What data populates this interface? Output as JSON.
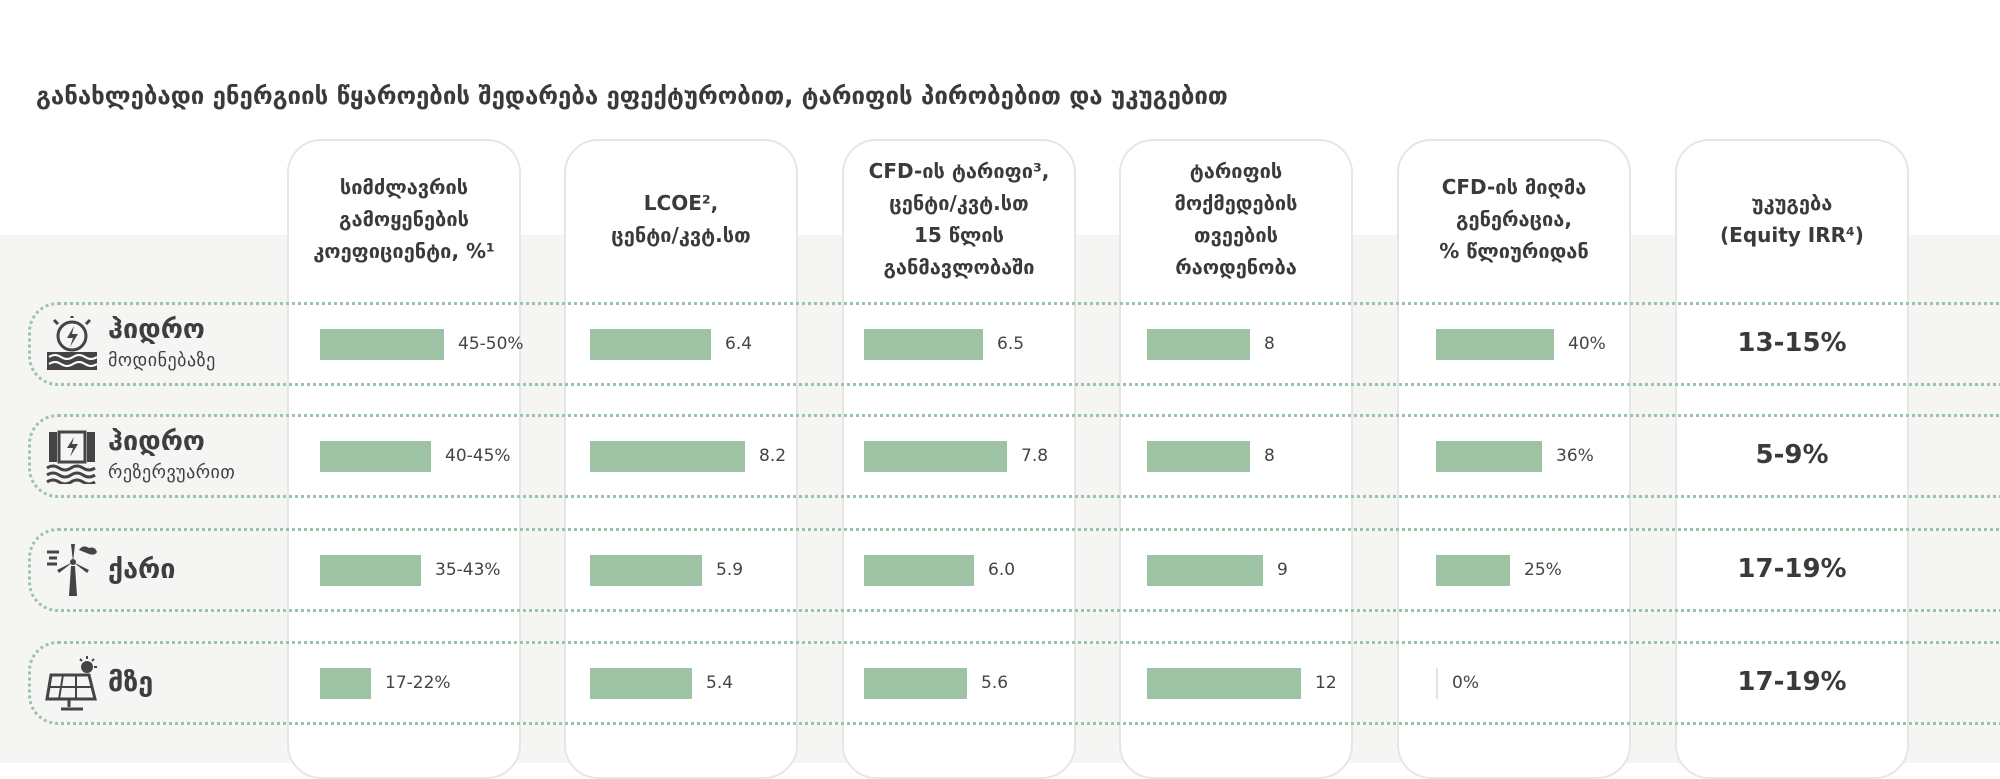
{
  "title": "განახლებადი ენერგიის წყაროების შედარება ეფექტურობით, ტარიფის პირობებით და უკუგებით",
  "colors": {
    "bar": "#9ec2a4",
    "row_border": "#9cc4a6",
    "band": "#f5f5f3"
  },
  "columns": [
    {
      "header": "სიმძლავრის\nგამოყენების\nკოეფიციენტი, %¹"
    },
    {
      "header": "LCOE²,\nცენტი/კვტ.სთ"
    },
    {
      "header": "CFD-ის ტარიფი³,\nცენტი/კვტ.სთ\n15 წლის\nგანმავლობაში"
    },
    {
      "header": "ტარიფის\nმოქმედების\nთვეების\nრაოდენობა"
    },
    {
      "header": "CFD-ის მიღმა\nგენერაცია,\n% წლიურიდან"
    },
    {
      "header": "უკუგება\n(Equity IRR⁴)"
    }
  ],
  "rows": [
    {
      "name": "ჰიდრო",
      "sub": "მოდინებაზე",
      "icon": "hydro-plant-icon"
    },
    {
      "name": "ჰიდრო",
      "sub": "რეზერვუარით",
      "icon": "dam-icon"
    },
    {
      "name": "ქარი",
      "sub": "",
      "icon": "wind-turbine-icon"
    },
    {
      "name": "მზე",
      "sub": "",
      "icon": "solar-panel-icon"
    }
  ],
  "chart_data": {
    "type": "bar",
    "categories": [
      "ჰიდრო მოდინებაზე",
      "ჰიდრო რეზერვუარით",
      "ქარი",
      "მზე"
    ],
    "series": [
      {
        "name": "სიმძლავრის გამოყენების კოეფიციენტი, %",
        "values": [
          47.5,
          42.5,
          39,
          19.5
        ],
        "labels": [
          "45-50%",
          "40-45%",
          "35-43%",
          "17-22%"
        ],
        "scale_max": 50
      },
      {
        "name": "LCOE, ცენტი/კვტ.სთ",
        "values": [
          6.4,
          8.2,
          5.9,
          5.4
        ],
        "labels": [
          "6.4",
          "8.2",
          "5.9",
          "5.4"
        ],
        "scale_max": 8.2
      },
      {
        "name": "CFD-ის ტარიფი, ცენტი/კვტ.სთ 15 წლის განმავლობაში",
        "values": [
          6.5,
          7.8,
          6.0,
          5.6
        ],
        "labels": [
          "6.5",
          "7.8",
          "6.0",
          "5.6"
        ],
        "scale_max": 7.8
      },
      {
        "name": "ტარიფის მოქმედების თვეების რაოდენობა",
        "values": [
          8,
          8,
          9,
          12
        ],
        "labels": [
          "8",
          "8",
          "9",
          "12"
        ],
        "scale_max": 12
      },
      {
        "name": "CFD-ის მიღმა გენერაცია, % წლიურიდან",
        "values": [
          40,
          36,
          25,
          0
        ],
        "labels": [
          "40%",
          "36%",
          "25%",
          "0%"
        ],
        "scale_max": 40
      }
    ],
    "irr": [
      "13-15%",
      "5-9%",
      "17-19%",
      "17-19%"
    ]
  }
}
